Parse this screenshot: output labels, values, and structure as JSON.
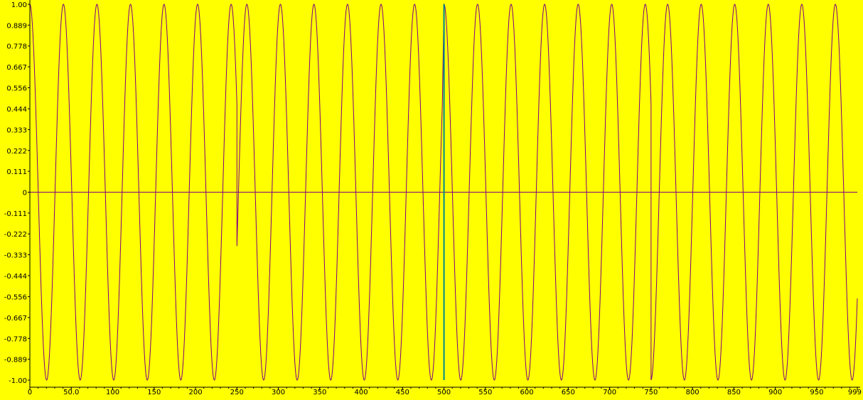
{
  "chart_data": {
    "type": "line",
    "title": "",
    "xlabel": "",
    "ylabel": "",
    "xlim": [
      0,
      999
    ],
    "ylim": [
      -1.0,
      1.0
    ],
    "grid": false,
    "legend": "none",
    "colors": {
      "background": "#ffff00",
      "trace": "#800080",
      "zero_line": "#800080",
      "cursor": "#008b8b",
      "axis": "#000000"
    },
    "x_ticks": [
      {
        "value": 0,
        "label": "0"
      },
      {
        "value": 50,
        "label": "50.0"
      },
      {
        "value": 100,
        "label": "100"
      },
      {
        "value": 150,
        "label": "150"
      },
      {
        "value": 200,
        "label": "200"
      },
      {
        "value": 250,
        "label": "250"
      },
      {
        "value": 300,
        "label": "300"
      },
      {
        "value": 350,
        "label": "350"
      },
      {
        "value": 400,
        "label": "400"
      },
      {
        "value": 450,
        "label": "450"
      },
      {
        "value": 500,
        "label": "500"
      },
      {
        "value": 550,
        "label": "550"
      },
      {
        "value": 600,
        "label": "600"
      },
      {
        "value": 650,
        "label": "650"
      },
      {
        "value": 700,
        "label": "700"
      },
      {
        "value": 750,
        "label": "750"
      },
      {
        "value": 800,
        "label": "800"
      },
      {
        "value": 850,
        "label": "850"
      },
      {
        "value": 900,
        "label": "900"
      },
      {
        "value": 950,
        "label": "950"
      },
      {
        "value": 999,
        "label": "999"
      }
    ],
    "y_ticks": [
      {
        "value": 1.0,
        "label": "1.00"
      },
      {
        "value": 0.889,
        "label": "0.889"
      },
      {
        "value": 0.778,
        "label": "0.778"
      },
      {
        "value": 0.667,
        "label": "0.667"
      },
      {
        "value": 0.556,
        "label": "0.556"
      },
      {
        "value": 0.444,
        "label": "0.444"
      },
      {
        "value": 0.333,
        "label": "0.333"
      },
      {
        "value": 0.222,
        "label": "0.222"
      },
      {
        "value": 0.111,
        "label": "0.111"
      },
      {
        "value": 0,
        "label": "0"
      },
      {
        "value": -0.111,
        "label": "-0.111"
      },
      {
        "value": -0.222,
        "label": "-0.222"
      },
      {
        "value": -0.333,
        "label": "-0.333"
      },
      {
        "value": -0.444,
        "label": "-0.444"
      },
      {
        "value": -0.556,
        "label": "-0.556"
      },
      {
        "value": -0.667,
        "label": "-0.667"
      },
      {
        "value": -0.778,
        "label": "-0.778"
      },
      {
        "value": -0.889,
        "label": "-0.889"
      },
      {
        "value": -1.0,
        "label": "-1.00"
      }
    ],
    "series": [
      {
        "segments": [
          {
            "x_start": 0,
            "x_end": 250,
            "function": "cos",
            "period": 40.5,
            "amplitude": 1.0,
            "phase_reference_x": 0
          },
          {
            "x_start": 250,
            "x_end": 498,
            "function": "cos",
            "period": 40.5,
            "amplitude": 1.0,
            "phase_reference_x": 262
          },
          {
            "x_start": 500,
            "x_end": 750,
            "function": "cos",
            "period": 40.5,
            "amplitude": 1.0,
            "phase_reference_x": 500
          },
          {
            "x_start": 750,
            "x_end": 999,
            "function": "cos",
            "period": 40.5,
            "amplitude": 1.0,
            "phase_reference_x": 770
          }
        ]
      }
    ],
    "cursor_x": 500
  }
}
